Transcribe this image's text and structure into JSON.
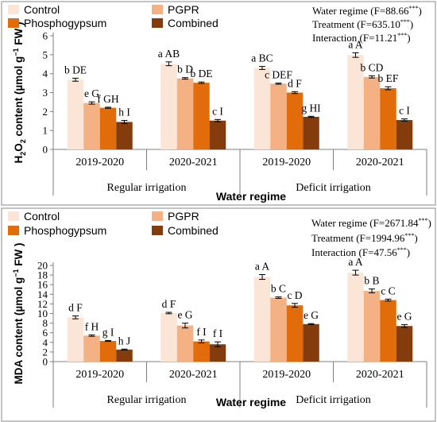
{
  "chart_data": [
    {
      "type": "bar",
      "ylabel": "H2O2 content (µmol g⁻¹ FW )",
      "ylabel_parts": {
        "h": "H",
        "sub1": "2",
        "o": "O",
        "sub2": "2",
        "rest": " content (µmol g",
        "sup": "−1",
        "fw": " FW )"
      },
      "xlabel": "Water regime",
      "ylim": [
        0,
        6
      ],
      "yticks": [
        0,
        1,
        2,
        3,
        4,
        5,
        6
      ],
      "groups": [
        {
          "year": "2019-2020",
          "regime": "Regular irrigation"
        },
        {
          "year": "2020-2021",
          "regime": "Regular irrigation"
        },
        {
          "year": "2019-2020",
          "regime": "Deficit irrigation"
        },
        {
          "year": "2020-2021",
          "regime": "Deficit irrigation"
        }
      ],
      "regimes": [
        "Regular irrigation",
        "Deficit irrigation"
      ],
      "series": [
        {
          "name": "Control",
          "color": "#fbe5d6",
          "values": [
            3.68,
            4.52,
            4.3,
            4.98
          ],
          "errors": [
            0.08,
            0.1,
            0.08,
            0.12
          ],
          "labels": [
            "b DE",
            "a AB",
            "a BC",
            "a A"
          ]
        },
        {
          "name": "PGPR",
          "color": "#f4b183",
          "values": [
            2.45,
            3.75,
            3.47,
            3.83
          ],
          "errors": [
            0.06,
            0.04,
            0.03,
            0.06
          ],
          "labels": [
            "e G",
            "b D",
            "c DEF",
            "b CD"
          ]
        },
        {
          "name": "Phosphogypsum",
          "color": "#e36c0a",
          "values": [
            2.2,
            3.52,
            3.0,
            3.23
          ],
          "errors": [
            0.03,
            0.04,
            0.05,
            0.08
          ],
          "labels": [
            "f GH",
            "b DE",
            "d F",
            "b EF"
          ]
        },
        {
          "name": "Combined",
          "color": "#843c0c",
          "values": [
            1.45,
            1.52,
            1.72,
            1.55
          ],
          "errors": [
            0.08,
            0.06,
            0.03,
            0.06
          ],
          "labels": [
            "h I",
            "c I",
            "g HI",
            "c I"
          ]
        }
      ],
      "stats": [
        {
          "label": "Water regime (F=88.66",
          "sup": "***",
          "close": ")"
        },
        {
          "label": "Treatment (F=635.10",
          "sup": "***",
          "close": ")"
        },
        {
          "label": "Interaction (F=11.21",
          "sup": "***",
          "close": ")"
        }
      ]
    },
    {
      "type": "bar",
      "ylabel": "MDA content (µmol g⁻¹ FW )",
      "ylabel_parts": {
        "rest": "MDA content (µmol g",
        "sup": "−1",
        "fw": " FW )"
      },
      "xlabel": "Water regime",
      "ylim": [
        0,
        20
      ],
      "yticks": [
        0,
        2,
        4,
        6,
        8,
        10,
        12,
        14,
        16,
        18,
        20
      ],
      "groups": [
        {
          "year": "2019-2020",
          "regime": "Regular irrigation"
        },
        {
          "year": "2020-2021",
          "regime": "Regular irrigation"
        },
        {
          "year": "2019-2020",
          "regime": "Deficit irrigation"
        },
        {
          "year": "2020-2021",
          "regime": "Deficit irrigation"
        }
      ],
      "regimes": [
        "Regular irrigation",
        "Deficit irrigation"
      ],
      "series": [
        {
          "name": "Control",
          "color": "#fbe5d6",
          "values": [
            9.2,
            10.1,
            17.6,
            18.5
          ],
          "errors": [
            0.3,
            0.15,
            0.5,
            0.5
          ],
          "labels": [
            "d F",
            "d F",
            "a A",
            "a A"
          ]
        },
        {
          "name": "PGPR",
          "color": "#f4b183",
          "values": [
            5.4,
            7.5,
            13.3,
            14.7
          ],
          "errors": [
            0.15,
            0.5,
            0.15,
            0.4
          ],
          "labels": [
            "f H",
            "e G",
            "b C",
            "b B"
          ]
        },
        {
          "name": "Phosphogypsum",
          "color": "#e36c0a",
          "values": [
            4.3,
            4.2,
            11.7,
            12.8
          ],
          "errors": [
            0.1,
            0.3,
            0.4,
            0.2
          ],
          "labels": [
            "g I",
            "f I",
            "c D",
            "c C"
          ]
        },
        {
          "name": "Combined",
          "color": "#843c0c",
          "values": [
            2.5,
            3.6,
            7.8,
            7.4
          ],
          "errors": [
            0.1,
            0.5,
            0.1,
            0.3
          ],
          "labels": [
            "h J",
            "f I",
            "e G",
            "e G"
          ]
        }
      ],
      "stats": [
        {
          "label": "Water regime (F=2671.84",
          "sup": "***",
          "close": ")"
        },
        {
          "label": "Treatment (F=1994.96",
          "sup": "***",
          "close": ")"
        },
        {
          "label": "Interaction (F=47.56",
          "sup": "***",
          "close": ")"
        }
      ]
    }
  ]
}
